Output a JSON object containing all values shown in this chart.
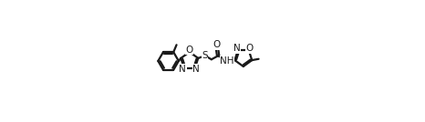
{
  "bg_color": "#ffffff",
  "line_color": "#1a1a1a",
  "line_width": 1.6,
  "font_size": 7.5,
  "figsize": [
    4.66,
    1.34
  ],
  "dpi": 100,
  "xlim": [
    0,
    100
  ],
  "ylim": [
    0,
    100
  ]
}
